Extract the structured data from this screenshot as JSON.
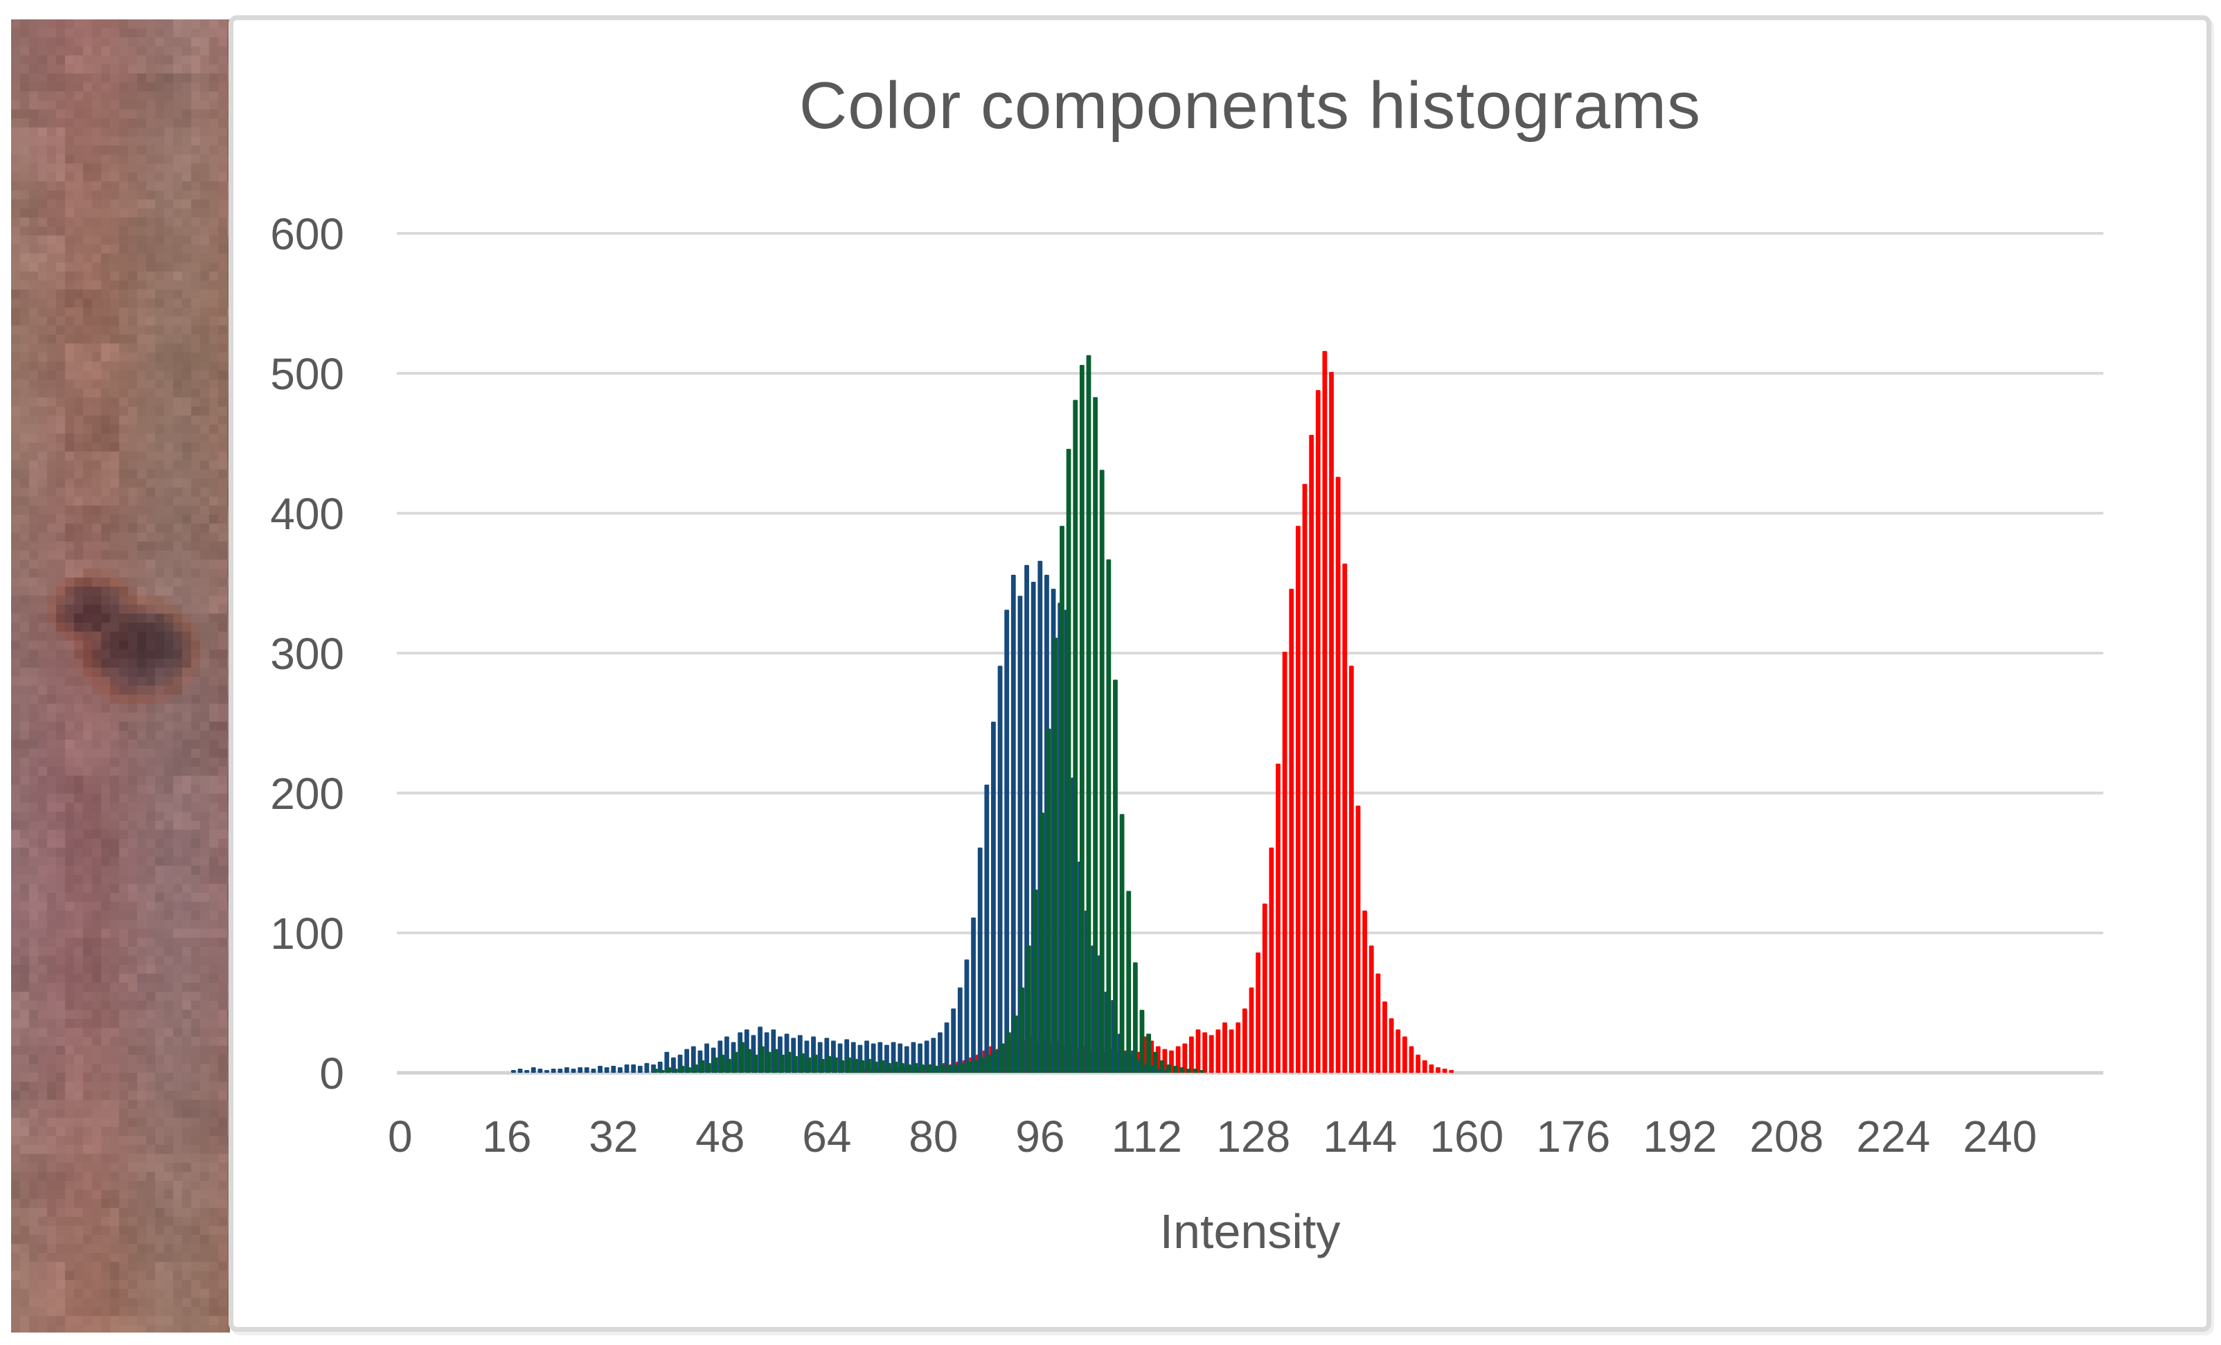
{
  "panel": {
    "background": "#ffffff",
    "border_color": "#d9d9d9"
  },
  "skin_photo": {
    "description_colors": {
      "skin_base": "#957170",
      "skin_light": "#9c7a74",
      "skin_brown": "#8d685f",
      "mole_dark": "#5a4045",
      "mole_orange": "#8a5a33"
    }
  },
  "chart_data": {
    "type": "bar",
    "title": "Color components histograms",
    "xlabel": "Intensity",
    "ylabel": "",
    "x_range": [
      0,
      256
    ],
    "ylim": [
      0,
      600
    ],
    "x_tick_labels": [
      "0",
      "16",
      "32",
      "48",
      "64",
      "80",
      "96",
      "112",
      "128",
      "144",
      "160",
      "176",
      "192",
      "208",
      "224",
      "240"
    ],
    "x_tick_values": [
      0,
      16,
      32,
      48,
      64,
      80,
      96,
      112,
      128,
      144,
      160,
      176,
      192,
      208,
      224,
      240
    ],
    "y_tick_labels": [
      "0",
      "100",
      "200",
      "300",
      "400",
      "500",
      "600"
    ],
    "y_tick_values": [
      0,
      100,
      200,
      300,
      400,
      500,
      600
    ],
    "grid": "horizontal",
    "legend": "none",
    "axis_text_color": "#595959",
    "gridline_color": "#dadada",
    "axis_line_color": "#d2d2d2",
    "series": [
      {
        "name": "Red",
        "color": "#fe0400",
        "start": 68,
        "values": [
          1,
          1,
          2,
          2,
          2,
          3,
          2,
          3,
          4,
          4,
          3,
          4,
          5,
          4,
          6,
          5,
          7,
          8,
          10,
          12,
          15,
          18,
          16,
          20,
          23,
          19,
          22,
          25,
          21,
          24,
          20,
          22,
          18,
          20,
          16,
          18,
          15,
          17,
          14,
          16,
          13,
          15,
          12,
          14,
          25,
          22,
          18,
          16,
          15,
          18,
          20,
          25,
          30,
          28,
          26,
          30,
          35,
          30,
          35,
          45,
          60,
          85,
          120,
          160,
          220,
          300,
          345,
          390,
          420,
          455,
          487,
          515,
          500,
          425,
          363,
          290,
          190,
          115,
          90,
          70,
          50,
          38,
          30,
          25,
          18,
          12,
          8,
          5,
          3,
          2,
          1
        ]
      },
      {
        "name": "Blue",
        "color": "#174a7c",
        "start": 17,
        "values": [
          1,
          2,
          1,
          3,
          2,
          1,
          2,
          2,
          3,
          2,
          3,
          3,
          2,
          4,
          3,
          4,
          3,
          5,
          5,
          4,
          6,
          5,
          7,
          14,
          10,
          12,
          16,
          18,
          15,
          20,
          17,
          22,
          25,
          21,
          28,
          30,
          26,
          32,
          28,
          30,
          25,
          27,
          24,
          26,
          22,
          25,
          21,
          24,
          22,
          20,
          23,
          21,
          19,
          22,
          20,
          21,
          19,
          21,
          20,
          18,
          21,
          20,
          22,
          24,
          28,
          35,
          45,
          60,
          80,
          110,
          160,
          205,
          250,
          290,
          330,
          355,
          340,
          362,
          350,
          365,
          355,
          345,
          335,
          330,
          210,
          150,
          115,
          90,
          83,
          57,
          51,
          27,
          14,
          15,
          8,
          5,
          4,
          2,
          1
        ]
      },
      {
        "name": "Green",
        "color": "#086030",
        "start": 38,
        "values": [
          2,
          1,
          3,
          2,
          4,
          3,
          5,
          8,
          6,
          10,
          12,
          9,
          14,
          21,
          16,
          12,
          18,
          14,
          16,
          12,
          14,
          11,
          13,
          10,
          12,
          9,
          11,
          10,
          8,
          10,
          9,
          8,
          9,
          7,
          8,
          6,
          7,
          6,
          5,
          6,
          5,
          5,
          4,
          5,
          4,
          5,
          6,
          7,
          8,
          10,
          12,
          15,
          20,
          28,
          40,
          60,
          90,
          130,
          185,
          245,
          310,
          390,
          445,
          480,
          505,
          512,
          482,
          430,
          366,
          280,
          184,
          129,
          78,
          44,
          27,
          14,
          8,
          5,
          4,
          3,
          2,
          2,
          1
        ]
      }
    ]
  }
}
